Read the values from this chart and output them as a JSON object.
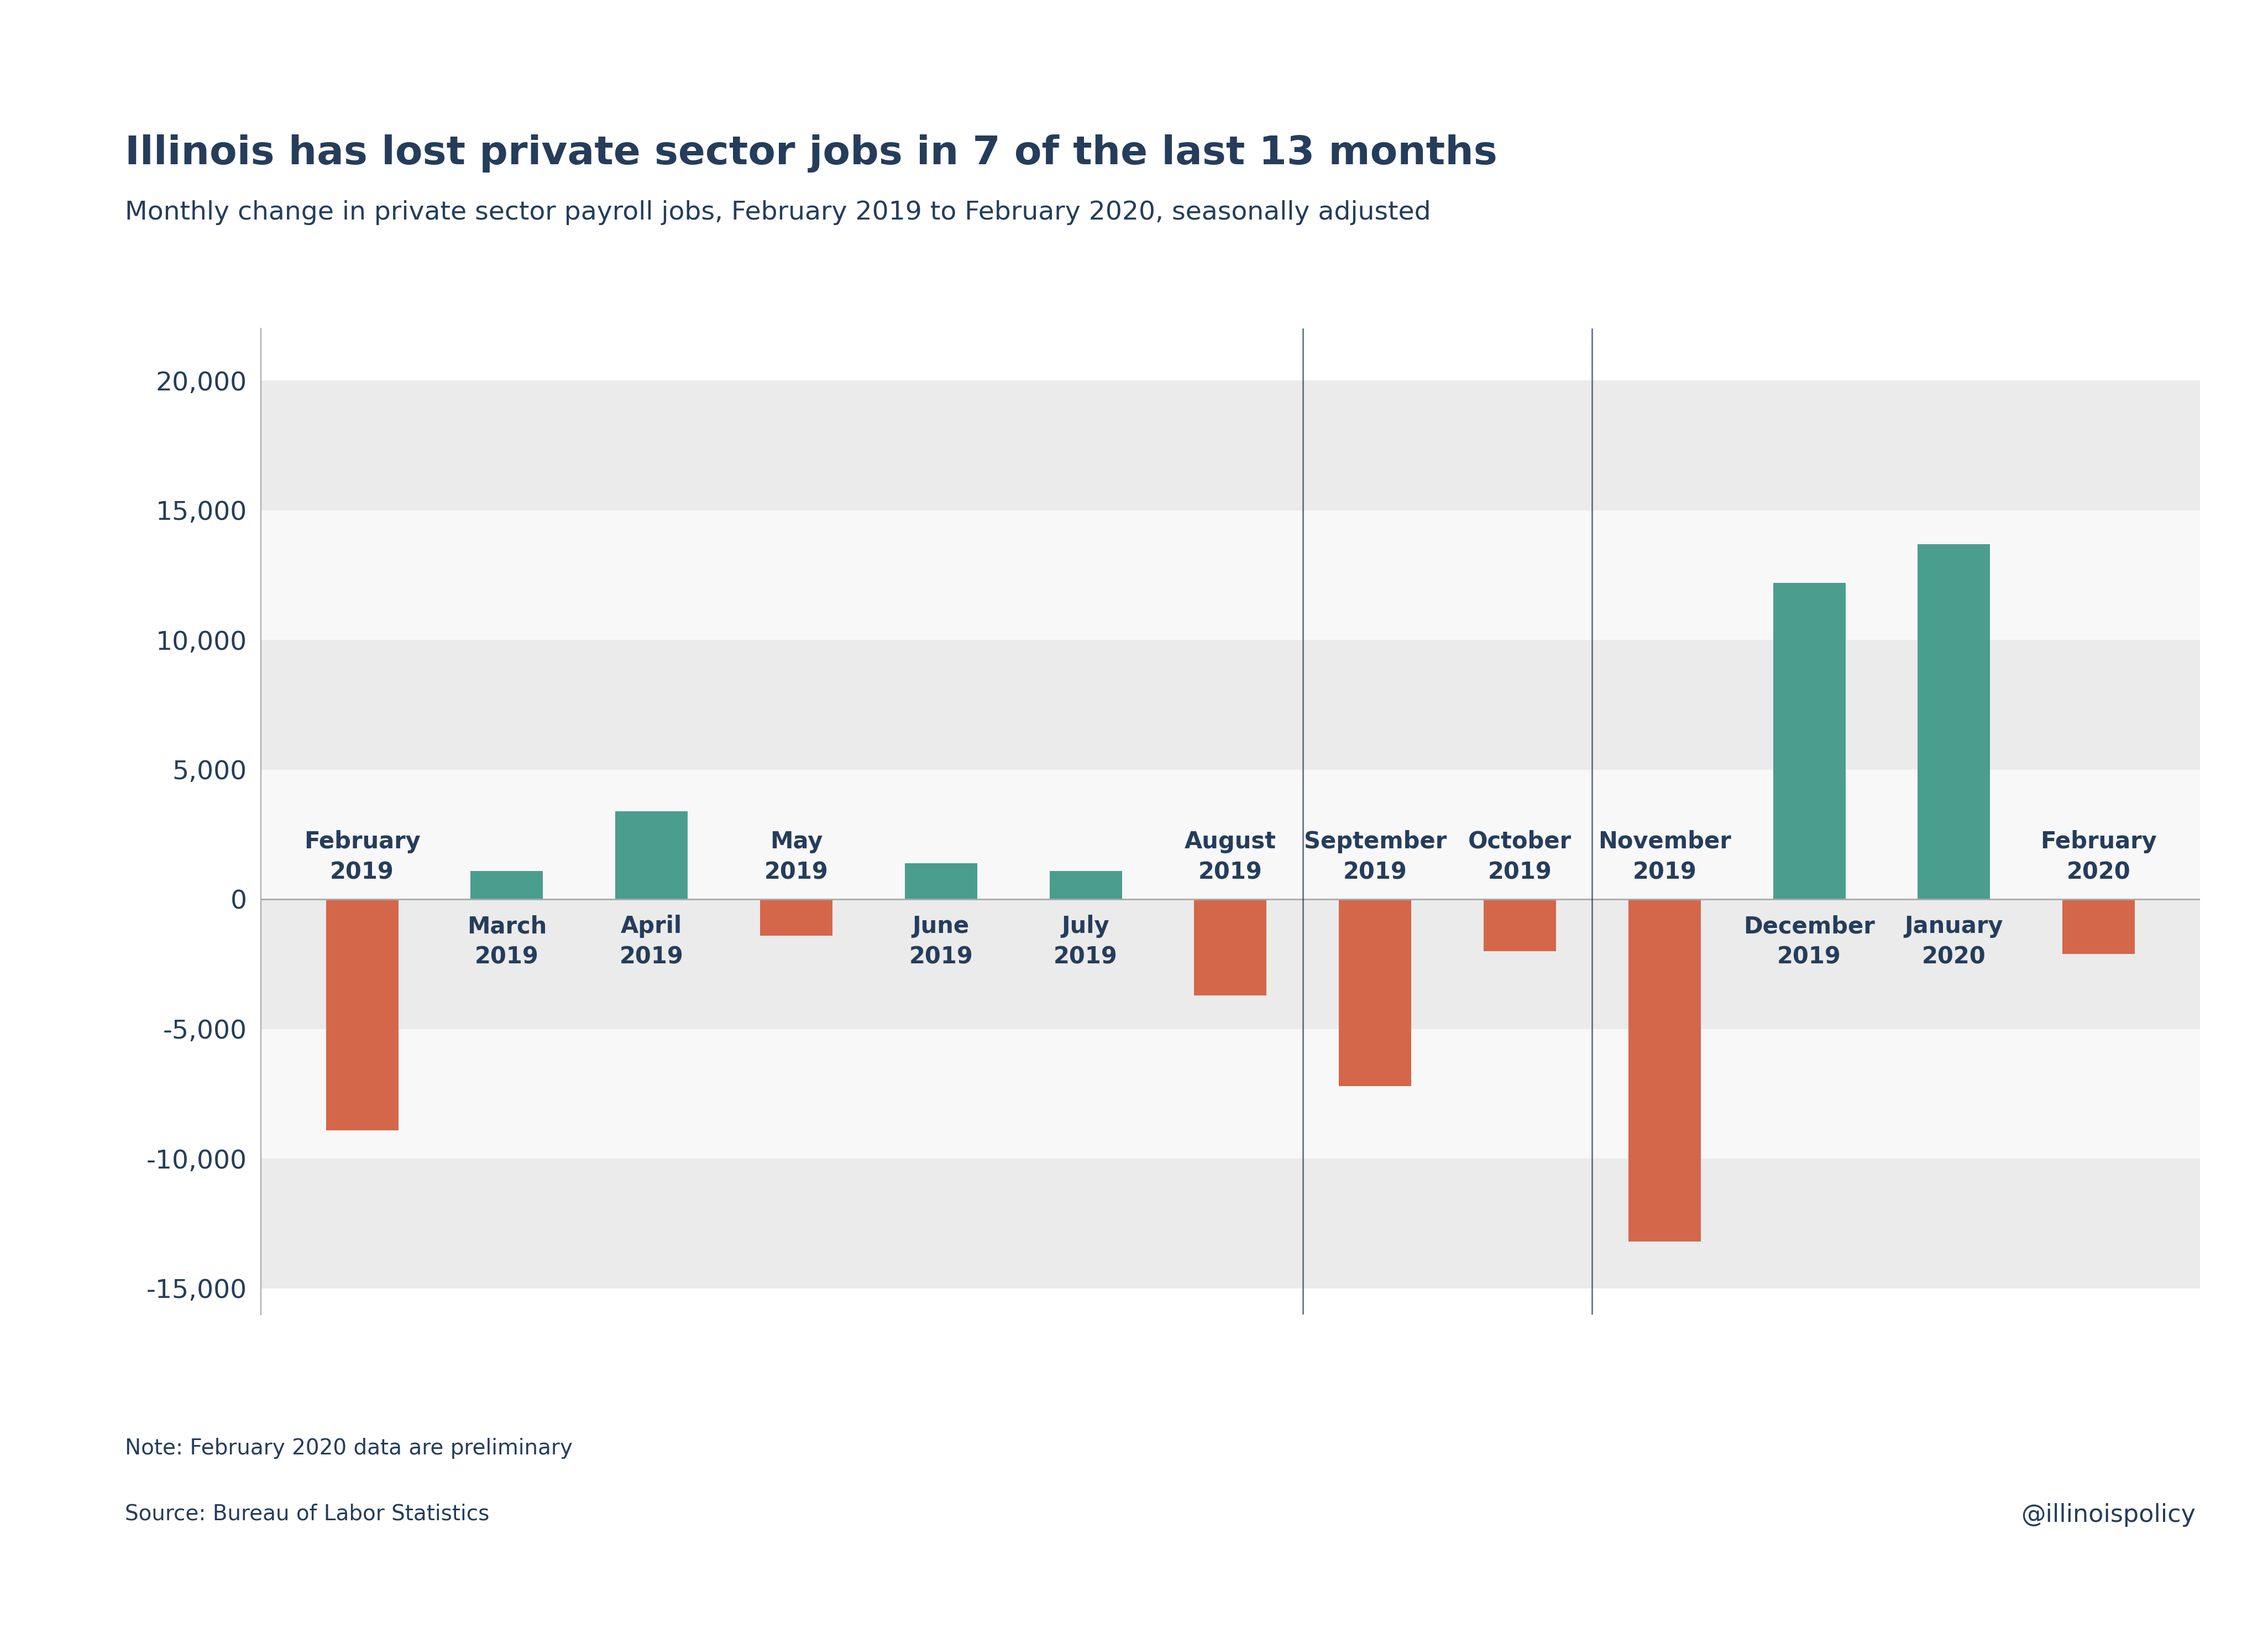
{
  "title": "Illinois has lost private sector jobs in 7 of the last 13 months",
  "subtitle": "Monthly change in private sector payroll jobs, February 2019 to February 2020, seasonally adjusted",
  "categories": [
    "February\n2019",
    "March\n2019",
    "April\n2019",
    "May\n2019",
    "June\n2019",
    "July\n2019",
    "August\n2019",
    "September\n2019",
    "October\n2019",
    "November\n2019",
    "December\n2019",
    "January\n2020",
    "February\n2020"
  ],
  "values": [
    -8900,
    1100,
    3400,
    -1400,
    1400,
    1100,
    -3700,
    -7200,
    -2000,
    -13200,
    12200,
    13700,
    -2100
  ],
  "positive_color": "#4a9e8e",
  "negative_color": "#d4674a",
  "background_color": "#ffffff",
  "band_gray": "#ebebeb",
  "band_white": "#f8f8f8",
  "axis_color": "#aaaaaa",
  "text_color": "#253d5b",
  "title_fontsize": 52,
  "subtitle_fontsize": 34,
  "tick_fontsize": 34,
  "label_fontsize": 30,
  "note_fontsize": 28,
  "watermark_fontsize": 32,
  "note_text": "Note: February 2020 data are preliminary",
  "source_text": "Source: Bureau of Labor Statistics",
  "watermark": "@illinoispolicy",
  "ylim": [
    -16000,
    22000
  ],
  "yticks": [
    -15000,
    -10000,
    -5000,
    0,
    5000,
    10000,
    15000,
    20000
  ],
  "vline_indices": [
    7,
    9
  ],
  "bar_width": 0.5
}
